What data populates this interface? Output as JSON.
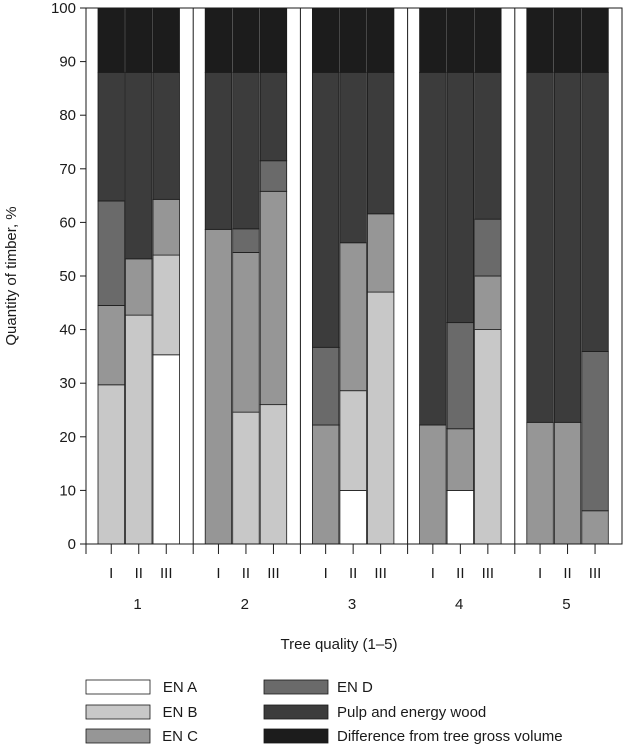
{
  "chart_data": {
    "type": "bar",
    "stacked": true,
    "title": "",
    "xlabel": "Tree quality (1–5)",
    "ylabel": "Quantity of timber, %",
    "ylim": [
      0,
      100
    ],
    "yticks": [
      0,
      10,
      20,
      30,
      40,
      50,
      60,
      70,
      80,
      90,
      100
    ],
    "grid": false,
    "legend_position": "bottom",
    "groups": [
      "1",
      "2",
      "3",
      "4",
      "5"
    ],
    "subcategories": [
      "I",
      "II",
      "III"
    ],
    "categories": [
      "1-I",
      "1-II",
      "1-III",
      "2-I",
      "2-II",
      "2-III",
      "3-I",
      "3-II",
      "3-III",
      "4-I",
      "4-II",
      "4-III",
      "5-I",
      "5-II",
      "5-III"
    ],
    "series": [
      {
        "name": "EN A",
        "color": "#ffffff",
        "values": [
          0,
          0,
          35.3,
          0,
          0,
          0,
          0,
          10,
          0,
          0,
          10,
          0,
          0,
          0,
          0
        ]
      },
      {
        "name": "EN B",
        "color": "#c8c8c8",
        "values": [
          29.7,
          42.7,
          18.6,
          0,
          24.6,
          26,
          0,
          18.6,
          47,
          0,
          0,
          40,
          0,
          0,
          0
        ]
      },
      {
        "name": "EN C",
        "color": "#969696",
        "values": [
          14.8,
          10.5,
          10.4,
          58.7,
          29.8,
          39.8,
          22.2,
          27.6,
          14.6,
          22.2,
          11.5,
          10,
          22.7,
          22.7,
          6.2
        ]
      },
      {
        "name": "EN D",
        "color": "#6a6a6a",
        "values": [
          19.5,
          0,
          0,
          0,
          4.4,
          5.7,
          14.5,
          0,
          0,
          0,
          19.8,
          10.6,
          0,
          0,
          29.7
        ]
      },
      {
        "name": "Pulp and energy wood",
        "color": "#3c3c3c",
        "values": [
          24,
          34.8,
          23.7,
          29.3,
          29.2,
          16.5,
          51.3,
          31.8,
          26.4,
          65.8,
          46.7,
          27.4,
          65.3,
          65.3,
          52.1
        ]
      },
      {
        "name": "Difference from tree gross volume",
        "color": "#1c1c1c",
        "values": [
          12,
          12,
          12,
          12,
          12,
          12,
          12,
          12,
          12,
          12,
          12,
          12,
          12,
          12,
          12
        ]
      }
    ]
  }
}
